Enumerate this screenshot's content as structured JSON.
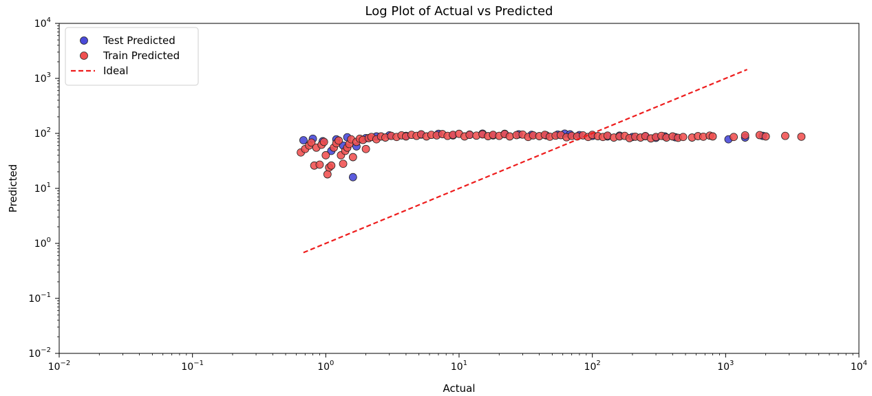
{
  "chart_data": {
    "type": "scatter",
    "title": "Log Plot of Actual vs Predicted",
    "xlabel": "Actual",
    "ylabel": "Predicted",
    "xscale": "log",
    "yscale": "log",
    "xlim": [
      0.01,
      10000
    ],
    "ylim": [
      0.01,
      10000
    ],
    "x_ticks": [
      {
        "base": "10",
        "exp": "−2"
      },
      {
        "base": "10",
        "exp": "−1"
      },
      {
        "base": "10",
        "exp": "0"
      },
      {
        "base": "10",
        "exp": "1"
      },
      {
        "base": "10",
        "exp": "2"
      },
      {
        "base": "10",
        "exp": "3"
      },
      {
        "base": "10",
        "exp": "4"
      }
    ],
    "y_ticks": [
      {
        "base": "10",
        "exp": "−2"
      },
      {
        "base": "10",
        "exp": "−1"
      },
      {
        "base": "10",
        "exp": "0"
      },
      {
        "base": "10",
        "exp": "1"
      },
      {
        "base": "10",
        "exp": "2"
      },
      {
        "base": "10",
        "exp": "3"
      },
      {
        "base": "10",
        "exp": "4"
      }
    ],
    "legend": {
      "placement": "top-left",
      "entries": [
        "Test Predicted",
        "Train Predicted",
        "Ideal"
      ]
    },
    "grid": false,
    "colors": {
      "test": "#4a4ad9",
      "train": "#f05050",
      "ideal": "#ee1c1c",
      "edge": "#222222"
    },
    "series": [
      {
        "name": "Test Predicted",
        "kind": "scatter",
        "points": [
          [
            0.68,
            75
          ],
          [
            0.8,
            80
          ],
          [
            0.95,
            72
          ],
          [
            1.1,
            48
          ],
          [
            1.2,
            78
          ],
          [
            1.35,
            60
          ],
          [
            1.45,
            85
          ],
          [
            1.6,
            16
          ],
          [
            1.7,
            58
          ],
          [
            2.0,
            82
          ],
          [
            2.4,
            88
          ],
          [
            3.0,
            92
          ],
          [
            4.0,
            90
          ],
          [
            5.2,
            95
          ],
          [
            7.0,
            98
          ],
          [
            9.0,
            92
          ],
          [
            12,
            95
          ],
          [
            15,
            99
          ],
          [
            18,
            92
          ],
          [
            22,
            98
          ],
          [
            28,
            96
          ],
          [
            35,
            94
          ],
          [
            45,
            92
          ],
          [
            55,
            95
          ],
          [
            62,
            99
          ],
          [
            68,
            96
          ],
          [
            80,
            93
          ],
          [
            100,
            90
          ],
          [
            130,
            88
          ],
          [
            160,
            91
          ],
          [
            200,
            86
          ],
          [
            250,
            89
          ],
          [
            300,
            83
          ],
          [
            350,
            88
          ],
          [
            420,
            85
          ],
          [
            1050,
            78
          ],
          [
            1400,
            84
          ],
          [
            1900,
            90
          ]
        ]
      },
      {
        "name": "Train Predicted",
        "kind": "scatter",
        "points": [
          [
            0.65,
            45
          ],
          [
            0.7,
            52
          ],
          [
            0.75,
            60
          ],
          [
            0.78,
            68
          ],
          [
            0.82,
            26
          ],
          [
            0.85,
            55
          ],
          [
            0.9,
            27
          ],
          [
            0.93,
            62
          ],
          [
            0.97,
            70
          ],
          [
            1.0,
            40
          ],
          [
            1.03,
            18
          ],
          [
            1.06,
            24
          ],
          [
            1.1,
            26
          ],
          [
            1.15,
            55
          ],
          [
            1.2,
            66
          ],
          [
            1.25,
            74
          ],
          [
            1.3,
            40
          ],
          [
            1.35,
            28
          ],
          [
            1.4,
            48
          ],
          [
            1.45,
            55
          ],
          [
            1.5,
            64
          ],
          [
            1.55,
            78
          ],
          [
            1.6,
            37
          ],
          [
            1.7,
            70
          ],
          [
            1.8,
            80
          ],
          [
            1.9,
            76
          ],
          [
            2.0,
            52
          ],
          [
            2.1,
            82
          ],
          [
            2.2,
            86
          ],
          [
            2.4,
            78
          ],
          [
            2.6,
            88
          ],
          [
            2.8,
            84
          ],
          [
            3.1,
            90
          ],
          [
            3.4,
            86
          ],
          [
            3.7,
            92
          ],
          [
            4.0,
            88
          ],
          [
            4.4,
            94
          ],
          [
            4.8,
            90
          ],
          [
            5.2,
            96
          ],
          [
            5.7,
            88
          ],
          [
            6.2,
            94
          ],
          [
            6.8,
            92
          ],
          [
            7.5,
            97
          ],
          [
            8.2,
            90
          ],
          [
            9.0,
            94
          ],
          [
            10,
            98
          ],
          [
            11,
            88
          ],
          [
            12,
            94
          ],
          [
            13.5,
            91
          ],
          [
            15,
            96
          ],
          [
            16.5,
            89
          ],
          [
            18,
            94
          ],
          [
            20,
            90
          ],
          [
            22,
            97
          ],
          [
            24,
            88
          ],
          [
            27,
            93
          ],
          [
            30,
            95
          ],
          [
            33,
            86
          ],
          [
            36,
            92
          ],
          [
            40,
            89
          ],
          [
            44,
            94
          ],
          [
            48,
            87
          ],
          [
            53,
            91
          ],
          [
            58,
            93
          ],
          [
            64,
            85
          ],
          [
            70,
            90
          ],
          [
            77,
            88
          ],
          [
            85,
            92
          ],
          [
            93,
            86
          ],
          [
            100,
            94
          ],
          [
            110,
            89
          ],
          [
            120,
            86
          ],
          [
            130,
            91
          ],
          [
            145,
            84
          ],
          [
            160,
            88
          ],
          [
            175,
            90
          ],
          [
            190,
            82
          ],
          [
            210,
            87
          ],
          [
            230,
            84
          ],
          [
            250,
            89
          ],
          [
            275,
            81
          ],
          [
            300,
            86
          ],
          [
            330,
            90
          ],
          [
            360,
            84
          ],
          [
            400,
            88
          ],
          [
            440,
            83
          ],
          [
            480,
            86
          ],
          [
            560,
            84
          ],
          [
            620,
            89
          ],
          [
            680,
            87
          ],
          [
            760,
            91
          ],
          [
            800,
            88
          ],
          [
            1150,
            86
          ],
          [
            1400,
            92
          ],
          [
            1800,
            93
          ],
          [
            2000,
            88
          ],
          [
            2800,
            90
          ],
          [
            3700,
            87
          ]
        ]
      },
      {
        "name": "Ideal",
        "kind": "line",
        "points": [
          [
            0.68,
            0.68
          ],
          [
            1450,
            1450
          ]
        ]
      }
    ]
  }
}
